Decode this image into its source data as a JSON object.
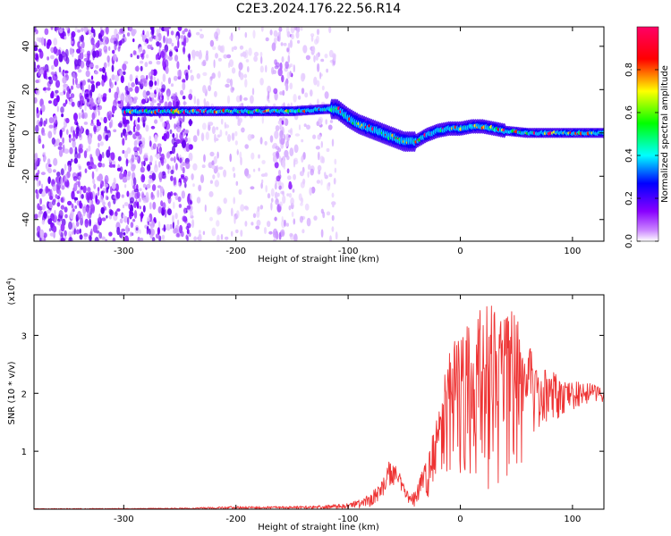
{
  "figure": {
    "title": "C2E3.2024.176.22.56.R14"
  },
  "chart_data": [
    {
      "type": "heatmap",
      "xlabel": "Height of straight line (km)",
      "ylabel": "Frequency (Hz)",
      "xlim": [
        -380,
        128
      ],
      "ylim": [
        -50,
        49
      ],
      "xticks": [
        -300,
        -200,
        -100,
        0,
        100
      ],
      "yticks": [
        -40,
        -20,
        0,
        20,
        40
      ],
      "colorbar": {
        "label": "Normalized spectral amplitude",
        "range": [
          0,
          1
        ],
        "ticks": [
          0.0,
          0.2,
          0.4,
          0.6,
          0.8
        ],
        "colors": [
          "#ffffff",
          "#cc88ff",
          "#8800ff",
          "#0000ff",
          "#00ffff",
          "#00ff00",
          "#ffff00",
          "#ff0000",
          "#ff0066"
        ]
      },
      "ridge": {
        "x": [
          -300,
          -240,
          -180,
          -150,
          -120,
          -110,
          -100,
          -90,
          -80,
          -70,
          -60,
          -50,
          -40,
          -30,
          -20,
          -10,
          0,
          10,
          20,
          30,
          40,
          60,
          80,
          100,
          128
        ],
        "y": [
          10,
          10,
          10,
          10,
          11,
          11,
          7,
          4,
          2,
          0,
          -2,
          -4,
          -4,
          -1,
          1,
          2,
          2,
          3,
          3,
          2,
          1,
          0,
          0,
          0,
          0
        ]
      },
      "noise_regions": [
        {
          "x_range": [
            -380,
            -240
          ],
          "level": "high"
        },
        {
          "x_range": [
            -240,
            -165
          ],
          "level": "low"
        },
        {
          "x_range": [
            -165,
            -150
          ],
          "level": "medium"
        },
        {
          "x_range": [
            -150,
            -110
          ],
          "level": "low"
        }
      ]
    },
    {
      "type": "line",
      "xlabel": "Height of straight line (km)",
      "ylabel": "SNR (10 * v/v)",
      "yscale_label": "(x10",
      "yscale_exp": "4",
      "yscale_close": ")",
      "xlim": [
        -380,
        128
      ],
      "ylim": [
        0,
        3.7
      ],
      "xticks": [
        -300,
        -200,
        -100,
        0,
        100
      ],
      "yticks": [
        1,
        2,
        3
      ],
      "color": "#ee3333",
      "envelope": {
        "x": [
          -380,
          -250,
          -200,
          -150,
          -120,
          -100,
          -85,
          -70,
          -65,
          -60,
          -55,
          -50,
          -45,
          -40,
          -30,
          -20,
          -10,
          0,
          10,
          20,
          30,
          40,
          50,
          60,
          70,
          80,
          90,
          100,
          110,
          128
        ],
        "lo": [
          0,
          0,
          0,
          0,
          0,
          0,
          0.02,
          0.1,
          0.35,
          0.3,
          0.4,
          0.2,
          0.05,
          0.03,
          0.1,
          0.55,
          0.6,
          0.6,
          0.5,
          0.3,
          0.3,
          0.4,
          0.6,
          1.0,
          1.3,
          1.5,
          1.6,
          1.7,
          1.8,
          1.85
        ],
        "hi": [
          0.01,
          0.02,
          0.05,
          0.05,
          0.07,
          0.1,
          0.2,
          0.5,
          0.9,
          0.85,
          0.7,
          0.4,
          0.25,
          0.3,
          0.9,
          1.7,
          2.8,
          3.1,
          3.3,
          3.5,
          3.6,
          3.6,
          3.3,
          2.9,
          2.6,
          2.4,
          2.3,
          2.2,
          2.2,
          2.1
        ]
      }
    }
  ]
}
